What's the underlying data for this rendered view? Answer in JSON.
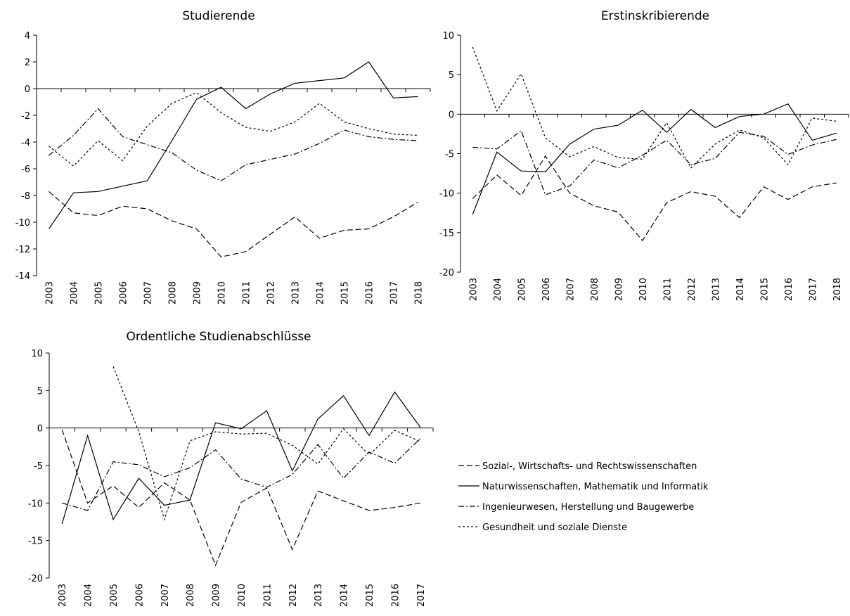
{
  "chart_data": [
    {
      "type": "line",
      "title": "Studierende",
      "categories": [
        "2003",
        "2004",
        "2005",
        "2006",
        "2007",
        "2008",
        "2009",
        "2010",
        "2011",
        "2012",
        "2013",
        "2014",
        "2015",
        "2016",
        "2017",
        "2018"
      ],
      "ylim": [
        -14,
        4
      ],
      "yticks": [
        -14,
        -12,
        -10,
        -8,
        -6,
        -4,
        -2,
        0,
        2,
        4
      ],
      "series": [
        {
          "name": "Sozial-, Wirtschafts- und Rechtswissenschaften",
          "color": "#000000",
          "dash": "8,4",
          "values": [
            -7.7,
            -9.3,
            -9.5,
            -8.8,
            -9.0,
            -9.9,
            -10.5,
            -12.6,
            -12.2,
            -10.9,
            -9.6,
            -11.2,
            -10.6,
            -10.5,
            -9.6,
            -8.5
          ]
        },
        {
          "name": "Naturwissenschaften, Mathematik und Informatik",
          "color": "#000000",
          "dash": "none",
          "values": [
            -10.5,
            -7.8,
            -7.7,
            -7.3,
            -6.9,
            -3.9,
            -0.8,
            0.1,
            -1.5,
            -0.4,
            0.4,
            0.6,
            0.8,
            2.0,
            -0.7,
            -0.6
          ]
        },
        {
          "name": "Ingenieurwesen, Herstellung und Baugewerbe",
          "color": "#000000",
          "dash": "8,3,2,3",
          "values": [
            -5.0,
            -3.5,
            -1.5,
            -3.6,
            -4.2,
            -4.8,
            -6.1,
            -6.9,
            -5.7,
            -5.3,
            -4.9,
            -4.1,
            -3.1,
            -3.6,
            -3.8,
            -3.9
          ]
        },
        {
          "name": "Gesundheit und soziale Dienste",
          "color": "#000000",
          "dash": "3,3",
          "values": [
            -4.3,
            -5.8,
            -3.9,
            -5.4,
            -2.8,
            -1.1,
            -0.3,
            -1.8,
            -2.9,
            -3.2,
            -2.5,
            -1.1,
            -2.5,
            -3.0,
            -3.4,
            -3.5
          ]
        }
      ]
    },
    {
      "type": "line",
      "title": "Erstinskribierende",
      "categories": [
        "2003",
        "2004",
        "2005",
        "2006",
        "2007",
        "2008",
        "2009",
        "2010",
        "2011",
        "2012",
        "2013",
        "2014",
        "2015",
        "2016",
        "2017",
        "2018"
      ],
      "ylim": [
        -20,
        10
      ],
      "yticks": [
        -20,
        -15,
        -10,
        -5,
        0,
        5,
        10
      ],
      "series": [
        {
          "color": "#000000",
          "dash": "8,4",
          "values": [
            -10.7,
            -7.7,
            -10.3,
            -5.3,
            -10.0,
            -11.6,
            -12.4,
            -16.0,
            -11.2,
            -9.8,
            -10.4,
            -13.1,
            -9.2,
            -10.8,
            -9.2,
            -8.7
          ]
        },
        {
          "color": "#000000",
          "dash": "none",
          "values": [
            -12.7,
            -4.8,
            -7.2,
            -7.3,
            -3.8,
            -1.9,
            -1.4,
            0.5,
            -2.3,
            0.6,
            -1.7,
            -0.3,
            0.0,
            1.3,
            -3.3,
            -2.4
          ]
        },
        {
          "color": "#000000",
          "dash": "8,3,2,3",
          "values": [
            -4.2,
            -4.4,
            -2.1,
            -10.2,
            -9.1,
            -5.8,
            -6.8,
            -5.2,
            -3.3,
            -6.4,
            -5.6,
            -2.3,
            -2.8,
            -5.1,
            -3.9,
            -3.2
          ]
        },
        {
          "color": "#000000",
          "dash": "3,3",
          "values": [
            8.5,
            0.4,
            5.1,
            -3.0,
            -5.4,
            -4.1,
            -5.5,
            -5.7,
            -1.1,
            -6.8,
            -3.8,
            -2.0,
            -3.0,
            -6.4,
            -0.5,
            -0.9
          ]
        }
      ]
    },
    {
      "type": "line",
      "title": "Ordentliche Studienabschlüsse",
      "categories": [
        "2003",
        "2004",
        "2005",
        "2006",
        "2007",
        "2008",
        "2009",
        "2010",
        "2011",
        "2012",
        "2013",
        "2014",
        "2015",
        "2016",
        "2017"
      ],
      "ylim": [
        -20,
        10
      ],
      "yticks": [
        -20,
        -15,
        -10,
        -5,
        0,
        5,
        10
      ],
      "series": [
        {
          "color": "#000000",
          "dash": "8,4",
          "values": [
            -0.2,
            -10.0,
            -7.7,
            -10.6,
            -7.3,
            -9.6,
            -18.3,
            -9.9,
            -8.0,
            -16.2,
            -8.4,
            -9.7,
            -11.0,
            -10.6,
            -10.0
          ]
        },
        {
          "color": "#000000",
          "dash": "none",
          "values": [
            -12.8,
            -1.0,
            -12.2,
            -6.7,
            -10.3,
            -9.6,
            0.7,
            -0.1,
            2.3,
            -5.7,
            1.2,
            4.3,
            -1.0,
            4.8,
            0.1
          ]
        },
        {
          "color": "#000000",
          "dash": "8,3,2,3",
          "values": [
            -10.0,
            -11.0,
            -4.5,
            -4.9,
            -6.5,
            -5.3,
            -2.9,
            -6.8,
            -7.9,
            -6.2,
            -2.2,
            -6.7,
            -3.2,
            -4.7,
            -1.4
          ]
        },
        {
          "color": "#000000",
          "dash": "3,3",
          "values": [
            null,
            null,
            8.2,
            -0.5,
            -12.2,
            -1.7,
            -0.5,
            -0.8,
            -0.7,
            -2.3,
            -4.8,
            -0.1,
            -3.6,
            -0.3,
            -1.8
          ]
        }
      ]
    }
  ]
}
